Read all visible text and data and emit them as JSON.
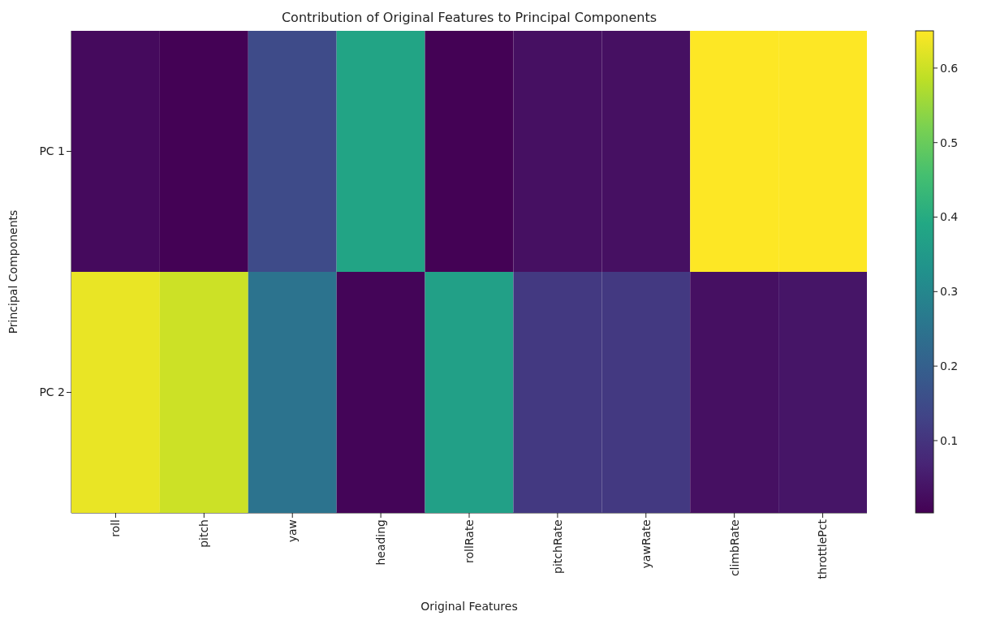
{
  "chart_data": {
    "type": "heatmap",
    "title": "Contribution of Original Features to Principal Components",
    "xlabel": "Original Features",
    "ylabel": "Principal Components",
    "categories": [
      "roll",
      "pitch",
      "yaw",
      "heading",
      "rollRate",
      "pitchRate",
      "yawRate",
      "climbRate",
      "throttlePct"
    ],
    "y_categories": [
      "PC 1",
      "PC 2"
    ],
    "cells": [
      [
        0.02,
        0.005,
        0.15,
        0.38,
        0.005,
        0.03,
        0.03,
        0.65,
        0.65
      ],
      [
        0.63,
        0.6,
        0.25,
        0.01,
        0.37,
        0.11,
        0.11,
        0.03,
        0.04
      ]
    ],
    "clim": [
      0.003,
      0.65
    ],
    "cticks": [
      0.1,
      0.2,
      0.3,
      0.4,
      0.5,
      0.6
    ]
  }
}
